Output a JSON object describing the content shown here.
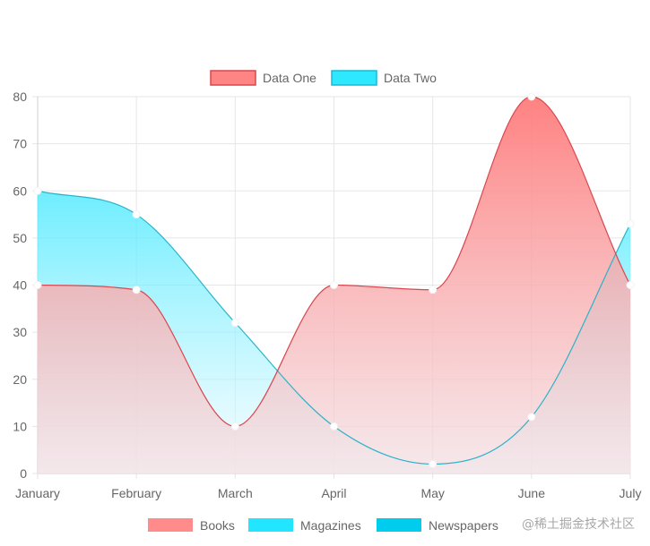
{
  "chart_data": {
    "type": "area",
    "categories": [
      "January",
      "February",
      "March",
      "April",
      "May",
      "June",
      "July"
    ],
    "series": [
      {
        "name": "Data One",
        "values": [
          40,
          39,
          10,
          40,
          39,
          80,
          40
        ],
        "color": "#ff6b6b"
      },
      {
        "name": "Data Two",
        "values": [
          60,
          55,
          32,
          10,
          2,
          12,
          53
        ],
        "color": "#22e6ff"
      }
    ],
    "ylim": [
      0,
      80
    ],
    "yticks": [
      0,
      10,
      20,
      30,
      40,
      50,
      60,
      70,
      80
    ],
    "grid": true,
    "legend_position": "top",
    "bottom_legend": [
      {
        "name": "Books",
        "color": "#ff8b8b"
      },
      {
        "name": "Magazines",
        "color": "#22e6ff"
      },
      {
        "name": "Newspapers",
        "color": "#00ccee"
      }
    ]
  },
  "watermark": "@稀土掘金技术社区"
}
